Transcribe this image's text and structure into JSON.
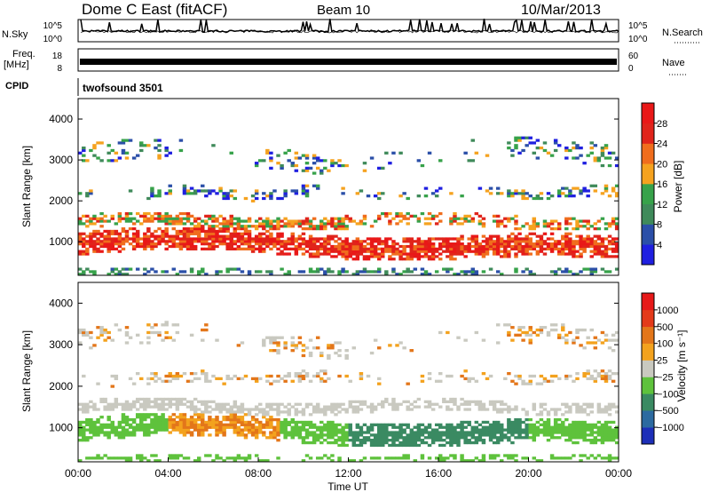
{
  "header": {
    "site_title": "Dome C East (fitACF)",
    "beam": "Beam 10",
    "date": "10/Mar/2013"
  },
  "panel_labels": {
    "nsky": "N.Sky",
    "freq": "Freq.",
    "freq_unit": "[MHz]",
    "cpid": "CPID",
    "nsearch": "N.Search",
    "nave": "Nave",
    "cpid_value": "twofsound 3501"
  },
  "colors": {
    "power": [
      "#1f1fe0",
      "#2b4fa8",
      "#3f8a5a",
      "#37a24a",
      "#f5a21f",
      "#f06d1d",
      "#e0241b",
      "#e91818"
    ],
    "velocity": [
      "#1d2fb8",
      "#2c6aa0",
      "#3a8a62",
      "#5ec23c",
      "#c9c9c0",
      "#f3a21e",
      "#e3761a",
      "#e33a1a",
      "#e61919"
    ]
  },
  "chart_data": [
    {
      "type": "line",
      "name": "noise-sky-search",
      "ylabel_left": "N.Sky",
      "ylabel_right": "N.Search",
      "y_ticks_left": [
        "10^5",
        "10^0"
      ],
      "y_ticks_right": [
        "10^5",
        "10^0"
      ],
      "x_range_hours": [
        0,
        24
      ]
    },
    {
      "type": "line",
      "name": "frequency-nave",
      "ylabel_left": "Freq. [MHz]",
      "ylabel_right": "Nave",
      "y_ticks_left": [
        "18",
        "8"
      ],
      "y_ticks_right": [
        "60",
        "0"
      ],
      "x_range_hours": [
        0,
        24
      ]
    },
    {
      "type": "heatmap",
      "name": "power",
      "ylabel": "Slant Range [km]",
      "ylim": [
        180,
        4500
      ],
      "y_ticks": [
        "1000",
        "2000",
        "3000",
        "4000"
      ],
      "colorbar_label": "Power [dB]",
      "colorbar_ticks": [
        "4",
        "8",
        "12",
        "16",
        "20",
        "24",
        "28"
      ],
      "x_range_hours": [
        0,
        24
      ]
    },
    {
      "type": "heatmap",
      "name": "velocity",
      "ylabel": "Slant Range [km]",
      "ylim": [
        180,
        4500
      ],
      "y_ticks": [
        "1000",
        "2000",
        "3000",
        "4000"
      ],
      "colorbar_label": "Velocity [m s⁻¹]",
      "colorbar_ticks": [
        "1000",
        "500",
        "100",
        "25",
        "−25",
        "−100",
        "−500",
        "−1000"
      ],
      "x_range_hours": [
        0,
        24
      ]
    }
  ],
  "time_axis": {
    "ticks": [
      "00:00",
      "04:00",
      "08:00",
      "12:00",
      "16:00",
      "20:00",
      "00:00"
    ],
    "label": "Time UT"
  }
}
